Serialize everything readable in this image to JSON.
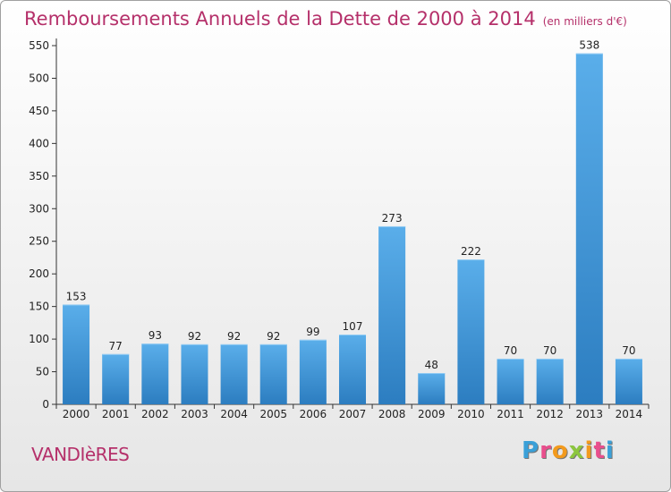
{
  "header": {
    "title": "Remboursements Annuels de la Dette de 2000 à 2014",
    "unit": "(en milliers d'€)"
  },
  "footer": {
    "commune": "VANDIèRES",
    "logo": "Proxiti"
  },
  "logo_letters": [
    {
      "char": "P",
      "color": "#3aa0d8"
    },
    {
      "char": "r",
      "color": "#e94e8c"
    },
    {
      "char": "o",
      "color": "#f29a1d"
    },
    {
      "char": "x",
      "color": "#8cc63f"
    },
    {
      "char": "i",
      "color": "#f29a1d"
    },
    {
      "char": "t",
      "color": "#e94e8c"
    },
    {
      "char": "i",
      "color": "#3aa0d8"
    }
  ],
  "chart_data": {
    "type": "bar",
    "categories": [
      "2000",
      "2001",
      "2002",
      "2003",
      "2004",
      "2005",
      "2006",
      "2007",
      "2008",
      "2009",
      "2010",
      "2011",
      "2012",
      "2013",
      "2014"
    ],
    "values": [
      153,
      77,
      93,
      92,
      92,
      92,
      99,
      107,
      273,
      48,
      222,
      70,
      70,
      538,
      70
    ],
    "title": "Remboursements Annuels de la Dette de 2000 à 2014",
    "ylim": [
      0,
      550
    ],
    "yticks": [
      0,
      50,
      100,
      150,
      200,
      250,
      300,
      350,
      400,
      450,
      500,
      550
    ],
    "grid": false,
    "bar_color_top": "#5aaeea",
    "bar_color_bottom": "#2c7dc0"
  }
}
